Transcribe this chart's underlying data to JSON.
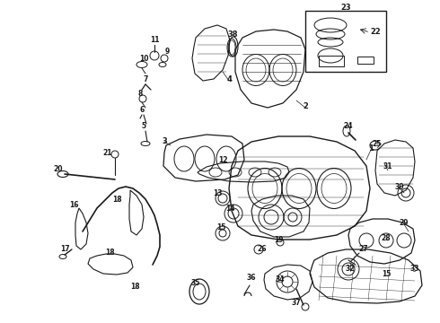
{
  "bg_color": "#ffffff",
  "fig_width": 4.9,
  "fig_height": 3.6,
  "dpi": 100,
  "dark": "#1a1a1a",
  "lw": 0.7
}
